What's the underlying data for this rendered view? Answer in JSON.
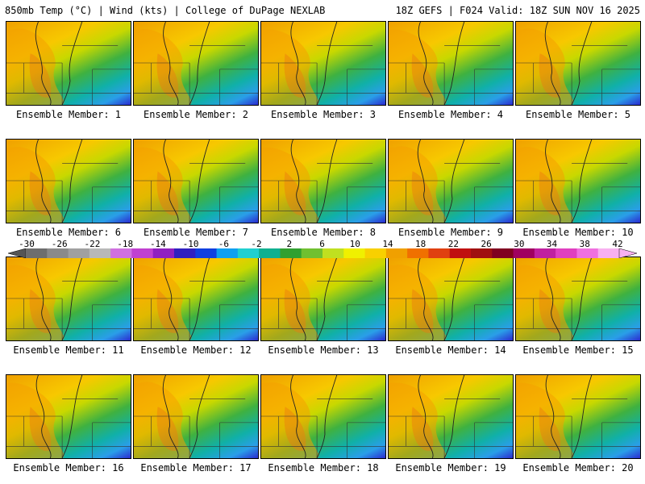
{
  "header": {
    "left": "850mb Temp (°C) | Wind (kts) | College of DuPage NEXLAB",
    "right": "18Z GEFS | F024 Valid: 18Z SUN NOV 16 2025"
  },
  "members": [
    "Ensemble Member: 1",
    "Ensemble Member: 2",
    "Ensemble Member: 3",
    "Ensemble Member: 4",
    "Ensemble Member: 5",
    "Ensemble Member: 6",
    "Ensemble Member: 7",
    "Ensemble Member: 8",
    "Ensemble Member: 9",
    "Ensemble Member: 10",
    "Ensemble Member: 11",
    "Ensemble Member: 12",
    "Ensemble Member: 13",
    "Ensemble Member: 14",
    "Ensemble Member: 15",
    "Ensemble Member: 16",
    "Ensemble Member: 17",
    "Ensemble Member: 18",
    "Ensemble Member: 19",
    "Ensemble Member: 20"
  ],
  "colorbar": {
    "ticks": [
      "-30",
      "-26",
      "-22",
      "-18",
      "-14",
      "-10",
      "-6",
      "-2",
      "2",
      "6",
      "10",
      "14",
      "18",
      "22",
      "26",
      "30",
      "34",
      "38",
      "42"
    ],
    "colors": [
      "#6e6e6e",
      "#8a8a8a",
      "#a0a0a0",
      "#b8b8b8",
      "#d070e0",
      "#c040d0",
      "#9020c0",
      "#3020c0",
      "#1040e0",
      "#10a0f0",
      "#20d0d0",
      "#10b090",
      "#30a030",
      "#70c030",
      "#c0e020",
      "#f0f000",
      "#f8d000",
      "#f0a000",
      "#f07000",
      "#e04010",
      "#c01010",
      "#a01010",
      "#800020",
      "#a00060",
      "#c020a0",
      "#e040c0",
      "#f070e0",
      "#f8b0f0"
    ]
  }
}
